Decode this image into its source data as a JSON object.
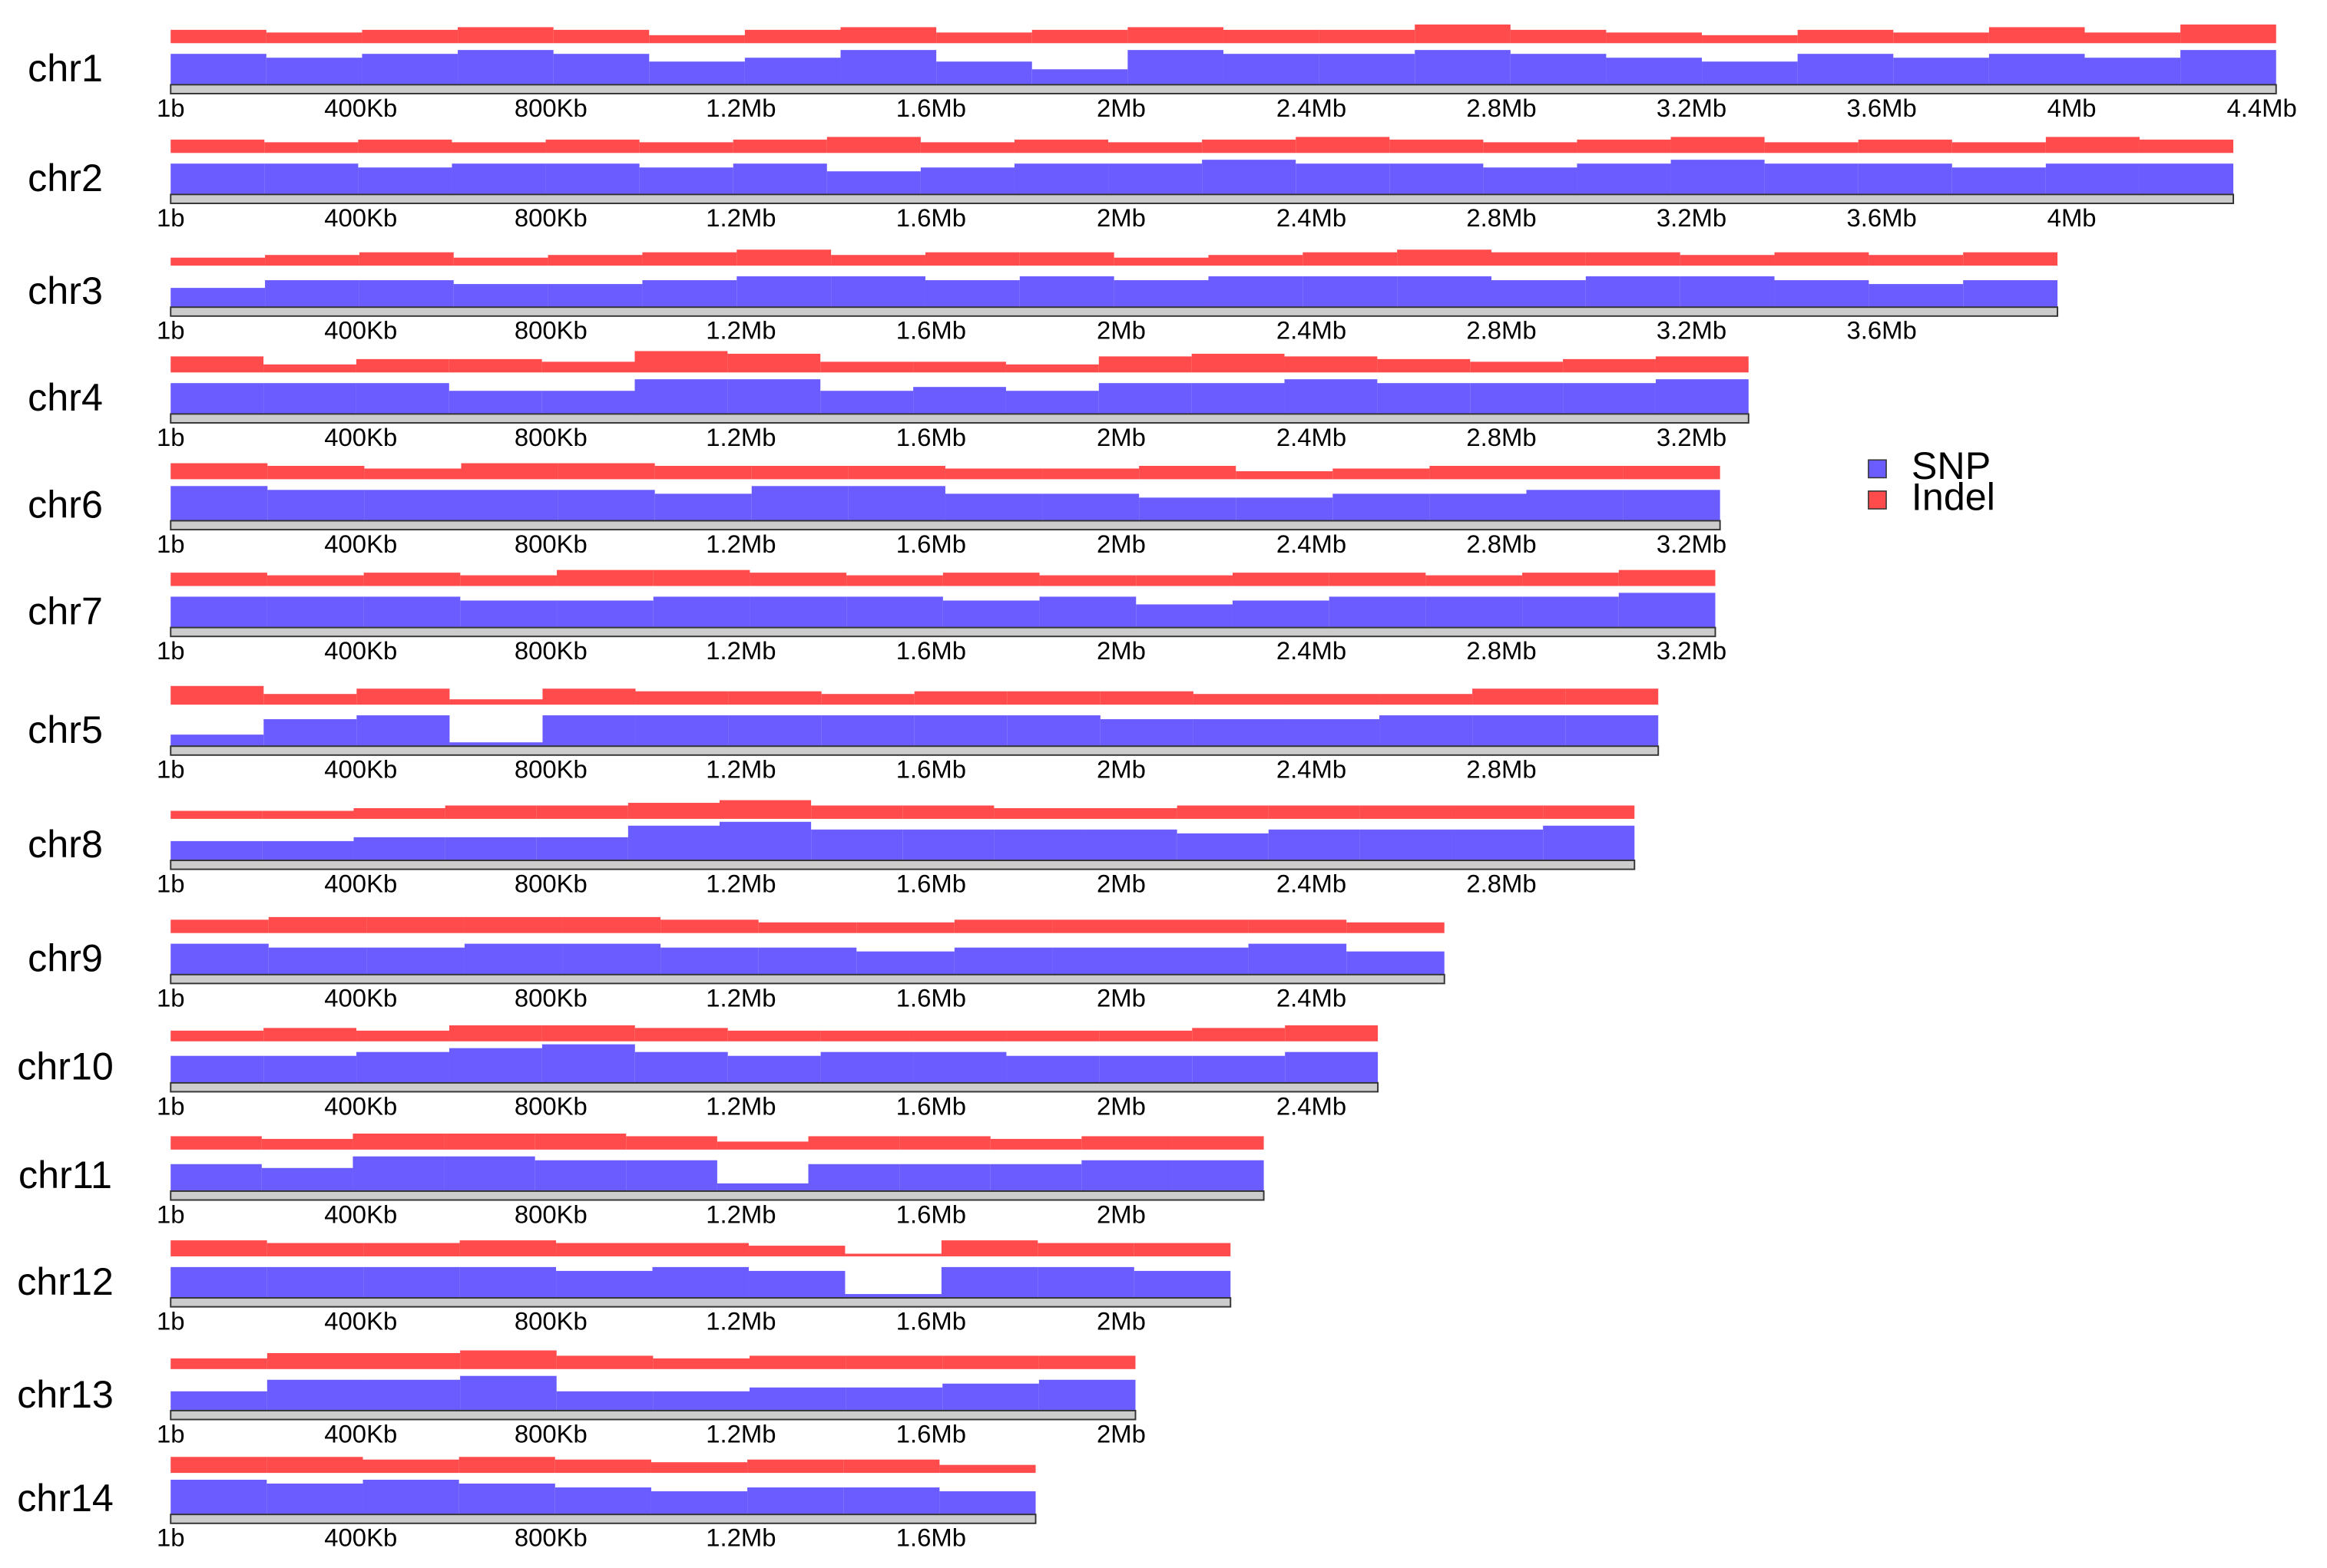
{
  "chart_data": {
    "type": "density",
    "series": [
      {
        "name": "SNP",
        "color": "#6a5cff"
      },
      {
        "name": "Indel",
        "color": "#ff4b4b"
      }
    ],
    "xticks": [
      {
        "value": 1,
        "label": "1b"
      },
      {
        "value": 400000,
        "label": "400Kb"
      },
      {
        "value": 800000,
        "label": "800Kb"
      },
      {
        "value": 1200000,
        "label": "1.2Mb"
      },
      {
        "value": 1600000,
        "label": "1.6Mb"
      },
      {
        "value": 2000000,
        "label": "2Mb"
      },
      {
        "value": 2400000,
        "label": "2.4Mb"
      },
      {
        "value": 2800000,
        "label": "2.8Mb"
      },
      {
        "value": 3200000,
        "label": "3.2Mb"
      },
      {
        "value": 3600000,
        "label": "3.6Mb"
      },
      {
        "value": 4000000,
        "label": "4Mb"
      },
      {
        "value": 4400000,
        "label": "4.4Mb"
      }
    ],
    "chromosomes": [
      {
        "name": "chr1",
        "length": 4430000,
        "snp": [
          0.8,
          0.7,
          0.8,
          0.9,
          0.8,
          0.6,
          0.7,
          0.9,
          0.6,
          0.4,
          0.9,
          0.8,
          0.8,
          0.9,
          0.8,
          0.7,
          0.6,
          0.8,
          0.7,
          0.8,
          0.7,
          0.9
        ],
        "indel": [
          0.5,
          0.4,
          0.5,
          0.6,
          0.5,
          0.3,
          0.5,
          0.6,
          0.4,
          0.5,
          0.6,
          0.5,
          0.5,
          0.7,
          0.5,
          0.4,
          0.3,
          0.5,
          0.4,
          0.6,
          0.4,
          0.7
        ]
      },
      {
        "name": "chr2",
        "length": 4340000,
        "snp": [
          0.8,
          0.8,
          0.7,
          0.8,
          0.8,
          0.7,
          0.8,
          0.6,
          0.7,
          0.8,
          0.8,
          0.9,
          0.8,
          0.8,
          0.7,
          0.8,
          0.9,
          0.8,
          0.8,
          0.7,
          0.8,
          0.8
        ],
        "indel": [
          0.5,
          0.4,
          0.5,
          0.4,
          0.5,
          0.4,
          0.5,
          0.6,
          0.4,
          0.5,
          0.4,
          0.5,
          0.6,
          0.5,
          0.4,
          0.5,
          0.6,
          0.4,
          0.5,
          0.4,
          0.6,
          0.5
        ]
      },
      {
        "name": "chr3",
        "length": 3970000,
        "snp": [
          0.5,
          0.7,
          0.7,
          0.6,
          0.6,
          0.7,
          0.8,
          0.8,
          0.7,
          0.8,
          0.7,
          0.8,
          0.8,
          0.8,
          0.7,
          0.8,
          0.8,
          0.7,
          0.6,
          0.7
        ],
        "indel": [
          0.3,
          0.4,
          0.5,
          0.3,
          0.4,
          0.5,
          0.6,
          0.4,
          0.5,
          0.5,
          0.3,
          0.4,
          0.5,
          0.6,
          0.5,
          0.5,
          0.4,
          0.5,
          0.4,
          0.5
        ]
      },
      {
        "name": "chr4",
        "length": 3320000,
        "snp": [
          0.8,
          0.8,
          0.8,
          0.6,
          0.6,
          0.9,
          0.9,
          0.6,
          0.7,
          0.6,
          0.8,
          0.8,
          0.9,
          0.8,
          0.8,
          0.8,
          0.9
        ],
        "indel": [
          0.6,
          0.3,
          0.5,
          0.5,
          0.4,
          0.8,
          0.7,
          0.4,
          0.4,
          0.3,
          0.6,
          0.7,
          0.6,
          0.5,
          0.4,
          0.5,
          0.6
        ]
      },
      {
        "name": "chr6",
        "length": 3260000,
        "snp": [
          0.9,
          0.8,
          0.8,
          0.8,
          0.8,
          0.7,
          0.9,
          0.9,
          0.7,
          0.7,
          0.6,
          0.6,
          0.7,
          0.7,
          0.8,
          0.8
        ],
        "indel": [
          0.6,
          0.5,
          0.4,
          0.6,
          0.6,
          0.5,
          0.5,
          0.5,
          0.4,
          0.4,
          0.5,
          0.3,
          0.4,
          0.5,
          0.5,
          0.5
        ]
      },
      {
        "name": "chr7",
        "length": 3250000,
        "snp": [
          0.8,
          0.8,
          0.8,
          0.7,
          0.7,
          0.8,
          0.8,
          0.8,
          0.7,
          0.8,
          0.6,
          0.7,
          0.8,
          0.8,
          0.8,
          0.9
        ],
        "indel": [
          0.5,
          0.4,
          0.5,
          0.4,
          0.6,
          0.6,
          0.5,
          0.4,
          0.5,
          0.4,
          0.4,
          0.5,
          0.5,
          0.4,
          0.5,
          0.6
        ]
      },
      {
        "name": "chr5",
        "length": 3130000,
        "snp": [
          0.3,
          0.7,
          0.8,
          0.1,
          0.8,
          0.8,
          0.8,
          0.8,
          0.8,
          0.8,
          0.7,
          0.7,
          0.7,
          0.8,
          0.8,
          0.8
        ],
        "indel": [
          0.7,
          0.4,
          0.6,
          0.2,
          0.6,
          0.5,
          0.5,
          0.4,
          0.5,
          0.5,
          0.5,
          0.4,
          0.4,
          0.4,
          0.6,
          0.6
        ]
      },
      {
        "name": "chr8",
        "length": 3080000,
        "snp": [
          0.5,
          0.5,
          0.6,
          0.6,
          0.6,
          0.9,
          1.0,
          0.8,
          0.8,
          0.8,
          0.8,
          0.7,
          0.8,
          0.8,
          0.8,
          0.9
        ],
        "indel": [
          0.3,
          0.3,
          0.4,
          0.5,
          0.5,
          0.6,
          0.7,
          0.5,
          0.5,
          0.4,
          0.4,
          0.5,
          0.5,
          0.5,
          0.5,
          0.5
        ]
      },
      {
        "name": "chr9",
        "length": 2680000,
        "snp": [
          0.8,
          0.7,
          0.7,
          0.8,
          0.8,
          0.7,
          0.7,
          0.6,
          0.7,
          0.7,
          0.7,
          0.8,
          0.6
        ],
        "indel": [
          0.5,
          0.6,
          0.6,
          0.6,
          0.6,
          0.5,
          0.4,
          0.4,
          0.5,
          0.5,
          0.5,
          0.5,
          0.4
        ]
      },
      {
        "name": "chr10",
        "length": 2540000,
        "snp": [
          0.7,
          0.7,
          0.8,
          0.9,
          1.0,
          0.8,
          0.7,
          0.8,
          0.8,
          0.7,
          0.7,
          0.7,
          0.8
        ],
        "indel": [
          0.4,
          0.5,
          0.4,
          0.6,
          0.6,
          0.5,
          0.4,
          0.4,
          0.4,
          0.4,
          0.4,
          0.5,
          0.6
        ]
      },
      {
        "name": "chr11",
        "length": 2300000,
        "snp": [
          0.7,
          0.6,
          0.9,
          0.9,
          0.8,
          0.8,
          0.2,
          0.7,
          0.7,
          0.7,
          0.8,
          0.8
        ],
        "indel": [
          0.5,
          0.4,
          0.6,
          0.6,
          0.6,
          0.5,
          0.3,
          0.5,
          0.5,
          0.4,
          0.5,
          0.5
        ]
      },
      {
        "name": "chr12",
        "length": 2230000,
        "snp": [
          0.8,
          0.8,
          0.8,
          0.8,
          0.7,
          0.8,
          0.7,
          0.1,
          0.8,
          0.8,
          0.7
        ],
        "indel": [
          0.6,
          0.5,
          0.5,
          0.6,
          0.5,
          0.5,
          0.4,
          0.1,
          0.6,
          0.5,
          0.5
        ]
      },
      {
        "name": "chr13",
        "length": 2030000,
        "snp": [
          0.5,
          0.8,
          0.8,
          0.9,
          0.5,
          0.5,
          0.6,
          0.6,
          0.7,
          0.8
        ],
        "indel": [
          0.4,
          0.6,
          0.6,
          0.7,
          0.5,
          0.4,
          0.5,
          0.5,
          0.5,
          0.5
        ]
      },
      {
        "name": "chr14",
        "length": 1820000,
        "snp": [
          0.9,
          0.8,
          0.9,
          0.8,
          0.7,
          0.6,
          0.7,
          0.7,
          0.6
        ],
        "indel": [
          0.6,
          0.6,
          0.5,
          0.6,
          0.5,
          0.4,
          0.5,
          0.5,
          0.3
        ]
      }
    ]
  }
}
